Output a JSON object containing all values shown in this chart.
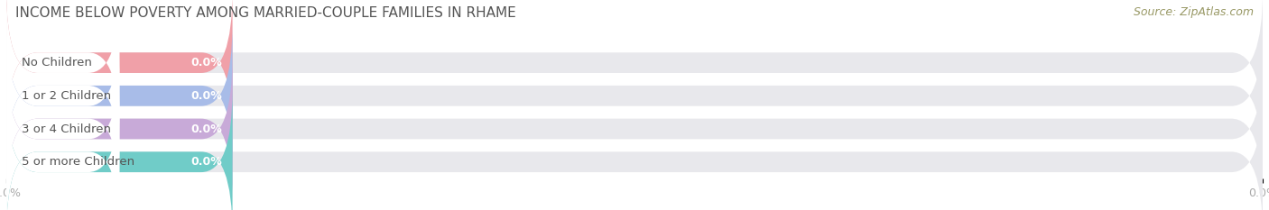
{
  "title": "INCOME BELOW POVERTY AMONG MARRIED-COUPLE FAMILIES IN RHAME",
  "source": "Source: ZipAtlas.com",
  "categories": [
    "No Children",
    "1 or 2 Children",
    "3 or 4 Children",
    "5 or more Children"
  ],
  "values": [
    0.0,
    0.0,
    0.0,
    0.0
  ],
  "bar_colors": [
    "#f0a0a8",
    "#a8bce8",
    "#c8aad8",
    "#70ccc8"
  ],
  "bar_bg_color": "#e8e8ec",
  "label_bg_color": "#f8f8f8",
  "background_color": "#ffffff",
  "title_fontsize": 11,
  "label_fontsize": 9.5,
  "value_fontsize": 9,
  "tick_fontsize": 9,
  "source_fontsize": 9,
  "source_color": "#999966",
  "tick_color": "#aaaaaa",
  "label_color": "#555555"
}
